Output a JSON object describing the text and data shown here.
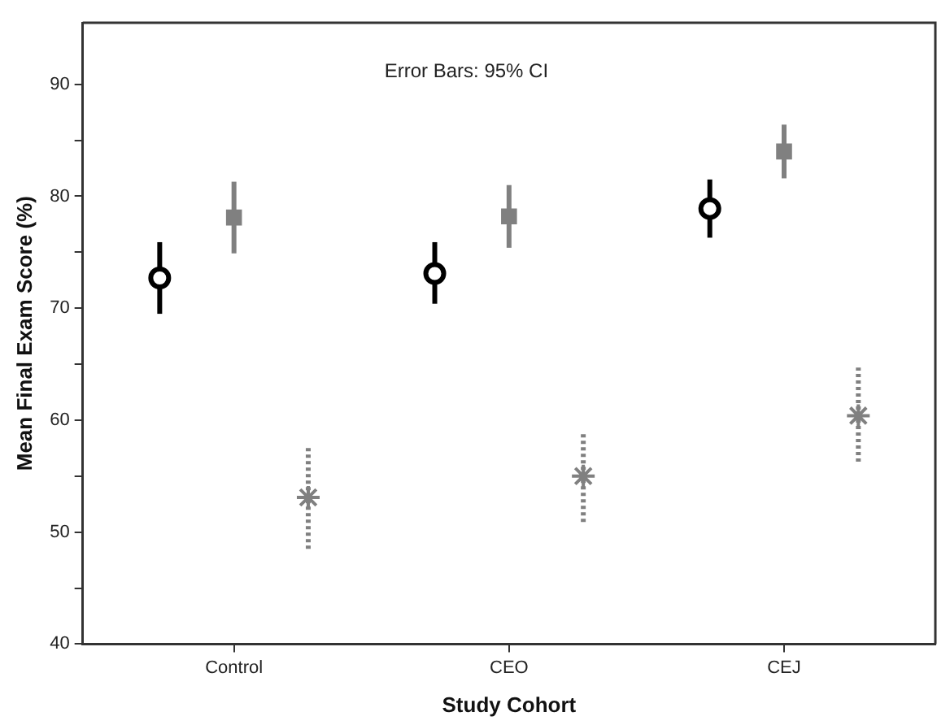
{
  "chart_data": {
    "type": "scatter",
    "xlabel": "Study Cohort",
    "ylabel": "Mean Final Exam Score (%)",
    "categories": [
      "Control",
      "CEO",
      "CEJ"
    ],
    "ylim": [
      40,
      95.5
    ],
    "yticks": [
      40,
      {
        "value": 45,
        "label": null
      },
      50,
      {
        "value": 55,
        "label": null
      },
      60,
      {
        "value": 65,
        "label": null
      },
      70,
      {
        "value": 75,
        "label": null
      },
      80,
      {
        "value": 85,
        "label": null
      },
      90
    ],
    "grid": false,
    "legend": false,
    "annotations": [
      "Error Bars: 95% CI"
    ],
    "series": [
      {
        "color": "#000000",
        "marker": "circle",
        "line_style": "solid",
        "values": [
          72.7,
          73.1,
          78.9
        ],
        "errors": [
          [
            69.5,
            75.9
          ],
          [
            70.4,
            75.9
          ],
          [
            76.3,
            81.5
          ]
        ]
      },
      {
        "color": "#808080",
        "marker": "square",
        "line_style": "solid",
        "values": [
          78.1,
          78.2,
          84.0
        ],
        "errors": [
          [
            74.9,
            81.3
          ],
          [
            75.4,
            81.0
          ],
          [
            81.6,
            86.4
          ]
        ]
      },
      {
        "color": "#808080",
        "marker": "cross",
        "line_style": "dotted",
        "values": [
          53.1,
          55.0,
          60.4
        ],
        "errors": [
          [
            48.5,
            57.7
          ],
          [
            50.9,
            59.0
          ],
          [
            56.3,
            64.7
          ]
        ]
      }
    ]
  }
}
